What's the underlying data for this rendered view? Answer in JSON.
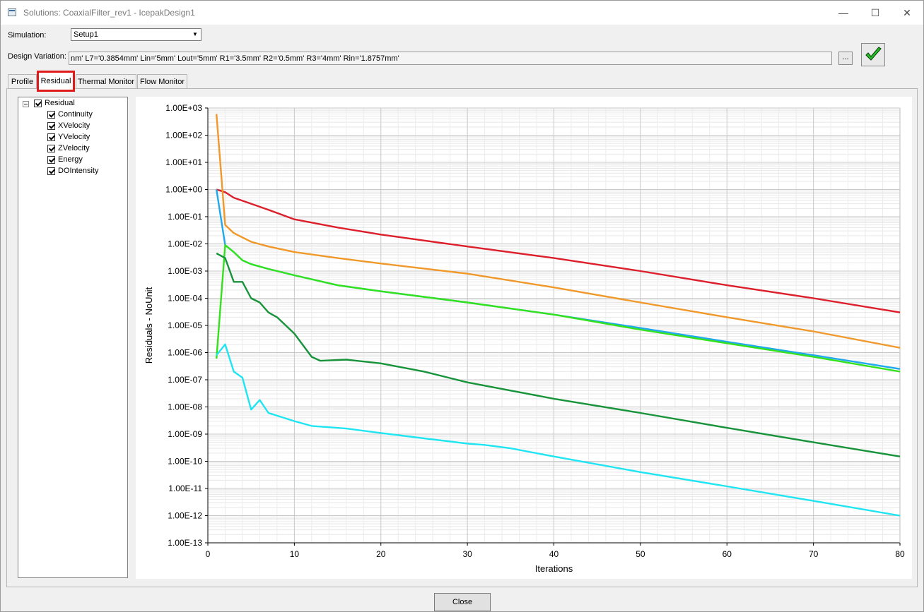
{
  "window": {
    "title": "Solutions: CoaxialFilter_rev1 - IcepakDesign1"
  },
  "titlebar_buttons": {
    "minimize": "—",
    "maximize": "☐",
    "close": "✕"
  },
  "simulation": {
    "label": "Simulation:",
    "value": "Setup1"
  },
  "design_variation": {
    "label": "Design Variation:",
    "value": "nm' L7='0.3854mm' Lin='5mm' Lout='5mm' R1='3.5mm' R2='0.5mm' R3='4mm' Rin='1.8757mm'",
    "more_label": "..."
  },
  "tabs": [
    {
      "label": "Profile"
    },
    {
      "label": "Residual"
    },
    {
      "label": "Thermal Monitor"
    },
    {
      "label": "Flow Monitor"
    }
  ],
  "tree": {
    "root": "Residual",
    "items": [
      "Continuity",
      "XVelocity",
      "YVelocity",
      "ZVelocity",
      "Energy",
      "DOIntensity"
    ]
  },
  "close_label": "Close",
  "colors": {
    "highlight": "#e01b1b",
    "red": "#dc1f2a",
    "orange": "#f0982a",
    "blue": "#1fa9ec",
    "green": "#33e21c",
    "darkgreen": "#17933a",
    "cyan": "#1fe5f2"
  },
  "chart_data": {
    "type": "line",
    "xlabel": "Iterations",
    "ylabel": "Residuals - NoUnit",
    "xlim": [
      0,
      80
    ],
    "ylim": [
      1e-13,
      1000
    ],
    "yscale": "log",
    "grid": true,
    "legend": "none",
    "x_ticks": [
      "0",
      "10",
      "20",
      "30",
      "40",
      "50",
      "60",
      "70",
      "80"
    ],
    "y_ticks": [
      "1.00E+03",
      "1.00E+02",
      "1.00E+01",
      "1.00E+00",
      "1.00E-01",
      "1.00E-02",
      "1.00E-03",
      "1.00E-04",
      "1.00E-05",
      "1.00E-06",
      "1.00E-07",
      "1.00E-08",
      "1.00E-09",
      "1.00E-10",
      "1.00E-11",
      "1.00E-12",
      "1.00E-13"
    ],
    "series": [
      {
        "color": "#dc1f2a",
        "points": [
          [
            1,
            1.0
          ],
          [
            2,
            0.8
          ],
          [
            3,
            0.5
          ],
          [
            5,
            0.3
          ],
          [
            7,
            0.18
          ],
          [
            10,
            0.08
          ],
          [
            15,
            0.04
          ],
          [
            20,
            0.022
          ],
          [
            30,
            0.008
          ],
          [
            40,
            0.003
          ],
          [
            50,
            0.001
          ],
          [
            60,
            0.0003
          ],
          [
            70,
            0.0001
          ],
          [
            80,
            3e-05
          ]
        ]
      },
      {
        "color": "#f0982a",
        "points": [
          [
            1,
            600
          ],
          [
            2,
            0.05
          ],
          [
            3,
            0.025
          ],
          [
            5,
            0.012
          ],
          [
            7,
            0.008
          ],
          [
            10,
            0.005
          ],
          [
            15,
            0.003
          ],
          [
            20,
            0.0019
          ],
          [
            30,
            0.0008
          ],
          [
            40,
            0.00025
          ],
          [
            50,
            7e-05
          ],
          [
            60,
            2e-05
          ],
          [
            70,
            6e-06
          ],
          [
            80,
            1.5e-06
          ]
        ]
      },
      {
        "color": "#1fa9ec",
        "points": [
          [
            1,
            1.0
          ],
          [
            2,
            0.009
          ],
          [
            3,
            0.005
          ],
          [
            4,
            0.0025
          ],
          [
            5,
            0.0018
          ],
          [
            7,
            0.0012
          ],
          [
            10,
            0.0007
          ],
          [
            15,
            0.0003
          ],
          [
            20,
            0.00018
          ],
          [
            30,
            7e-05
          ],
          [
            40,
            2.5e-05
          ],
          [
            50,
            8e-06
          ],
          [
            60,
            2.5e-06
          ],
          [
            70,
            8e-07
          ],
          [
            80,
            2.5e-07
          ]
        ]
      },
      {
        "color": "#33e21c",
        "points": [
          [
            1,
            6e-07
          ],
          [
            2,
            0.009
          ],
          [
            3,
            0.005
          ],
          [
            4,
            0.0025
          ],
          [
            5,
            0.0018
          ],
          [
            7,
            0.0012
          ],
          [
            10,
            0.0007
          ],
          [
            15,
            0.0003
          ],
          [
            20,
            0.00018
          ],
          [
            30,
            7e-05
          ],
          [
            40,
            2.5e-05
          ],
          [
            50,
            7e-06
          ],
          [
            60,
            2.2e-06
          ],
          [
            70,
            7e-07
          ],
          [
            80,
            2e-07
          ]
        ]
      },
      {
        "color": "#17933a",
        "points": [
          [
            1,
            0.0045
          ],
          [
            2,
            0.003
          ],
          [
            3,
            0.0004
          ],
          [
            4,
            0.0004
          ],
          [
            5,
            0.0001
          ],
          [
            6,
            7e-05
          ],
          [
            7,
            3e-05
          ],
          [
            8,
            2e-05
          ],
          [
            10,
            5e-06
          ],
          [
            12,
            7e-07
          ],
          [
            13,
            5e-07
          ],
          [
            16,
            5.5e-07
          ],
          [
            20,
            4e-07
          ],
          [
            25,
            2e-07
          ],
          [
            30,
            8e-08
          ],
          [
            40,
            2e-08
          ],
          [
            50,
            6e-09
          ],
          [
            60,
            1.7e-09
          ],
          [
            70,
            5e-10
          ],
          [
            80,
            1.5e-10
          ]
        ]
      },
      {
        "color": "#1fe5f2",
        "points": [
          [
            1,
            8e-07
          ],
          [
            2,
            2e-06
          ],
          [
            3,
            2e-07
          ],
          [
            4,
            1.2e-07
          ],
          [
            5,
            8e-09
          ],
          [
            6,
            1.8e-08
          ],
          [
            7,
            6e-09
          ],
          [
            10,
            3e-09
          ],
          [
            12,
            2e-09
          ],
          [
            16,
            1.6e-09
          ],
          [
            20,
            1.1e-09
          ],
          [
            25,
            7e-10
          ],
          [
            30,
            4.5e-10
          ],
          [
            32,
            4e-10
          ],
          [
            35,
            3e-10
          ],
          [
            40,
            1.5e-10
          ],
          [
            50,
            4e-11
          ],
          [
            60,
            1.2e-11
          ],
          [
            70,
            3.5e-12
          ],
          [
            80,
            1e-12
          ]
        ]
      }
    ]
  }
}
